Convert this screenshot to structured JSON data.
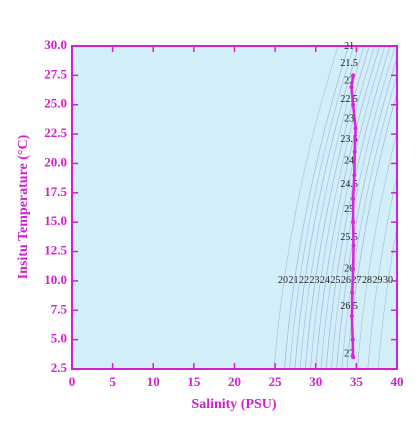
{
  "chart_data": {
    "type": "scatter",
    "xlabel": "Salinity (PSU)",
    "ylabel": "Insitu Temperature (°C)",
    "x": [
      34.6,
      34.55,
      34.45,
      34.5,
      34.6,
      34.65,
      34.6,
      34.6,
      34.75,
      34.8,
      34.9,
      34.6,
      34.4,
      34.6
    ],
    "y": [
      3.5,
      5,
      7,
      9,
      11,
      13,
      15,
      17,
      19,
      21,
      23,
      25,
      26.5,
      27.5
    ],
    "color": "#e020e0",
    "xlim": [
      0,
      40
    ],
    "xticks": [
      0,
      5,
      10,
      15,
      20,
      25,
      30,
      35,
      40
    ],
    "ylim": [
      2.5,
      30
    ],
    "yticks": [
      2.5,
      {
        "value": 5,
        "label": "5.0"
      },
      7.5,
      {
        "value": 10,
        "label": "10.0"
      },
      12.5,
      {
        "value": 15,
        "label": "15.0"
      },
      17.5,
      {
        "value": 20,
        "label": "20.0"
      },
      22.5,
      {
        "value": 25,
        "label": "25.0"
      },
      27.5,
      {
        "value": 30,
        "label": "30.0"
      }
    ],
    "contours": {
      "color": "#a8b8e0",
      "labels": [
        21,
        21.5,
        22,
        22.5,
        23,
        23.5,
        24,
        24.5,
        25,
        25.5,
        26,
        26.5,
        27
      ],
      "row_labels": [
        20,
        21,
        22,
        23,
        24,
        25,
        26,
        27,
        28,
        29,
        30
      ]
    }
  }
}
